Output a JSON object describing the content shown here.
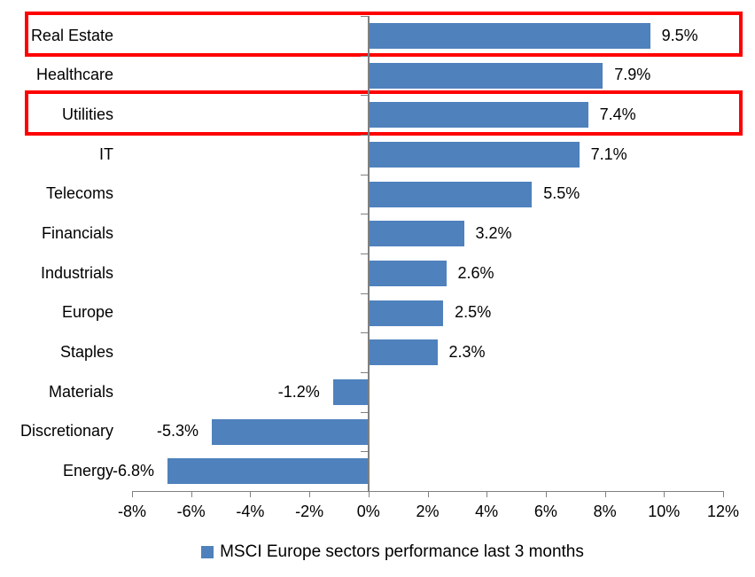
{
  "chart_data": {
    "type": "bar",
    "orientation": "horizontal",
    "categories": [
      "Real Estate",
      "Healthcare",
      "Utilities",
      "IT",
      "Telecoms",
      "Financials",
      "Industrials",
      "Europe",
      "Staples",
      "Materials",
      "Discretionary",
      "Energy"
    ],
    "values": [
      9.5,
      7.9,
      7.4,
      7.1,
      5.5,
      3.2,
      2.6,
      2.5,
      2.3,
      -1.2,
      -5.3,
      -6.8
    ],
    "value_labels": [
      "9.5%",
      "7.9%",
      "7.4%",
      "7.1%",
      "5.5%",
      "3.2%",
      "2.6%",
      "2.5%",
      "2.3%",
      "-1.2%",
      "-5.3%",
      "-6.8%"
    ],
    "x_axis": {
      "min": -8,
      "max": 12,
      "step": 2,
      "tick_labels": [
        "-8%",
        "-6%",
        "-4%",
        "-2%",
        "0%",
        "2%",
        "4%",
        "6%",
        "8%",
        "10%",
        "12%"
      ]
    },
    "legend": {
      "label": "MSCI Europe sectors performance last 3 months",
      "marker_color": "#4F81BD"
    },
    "bar_color": "#4F81BD",
    "axis_color": "#808080",
    "text_color": "#000000",
    "highlight_box_color": "#FF0000",
    "highlighted_categories": [
      "Real Estate",
      "Utilities"
    ],
    "grid": false,
    "legend_position": "bottom"
  }
}
